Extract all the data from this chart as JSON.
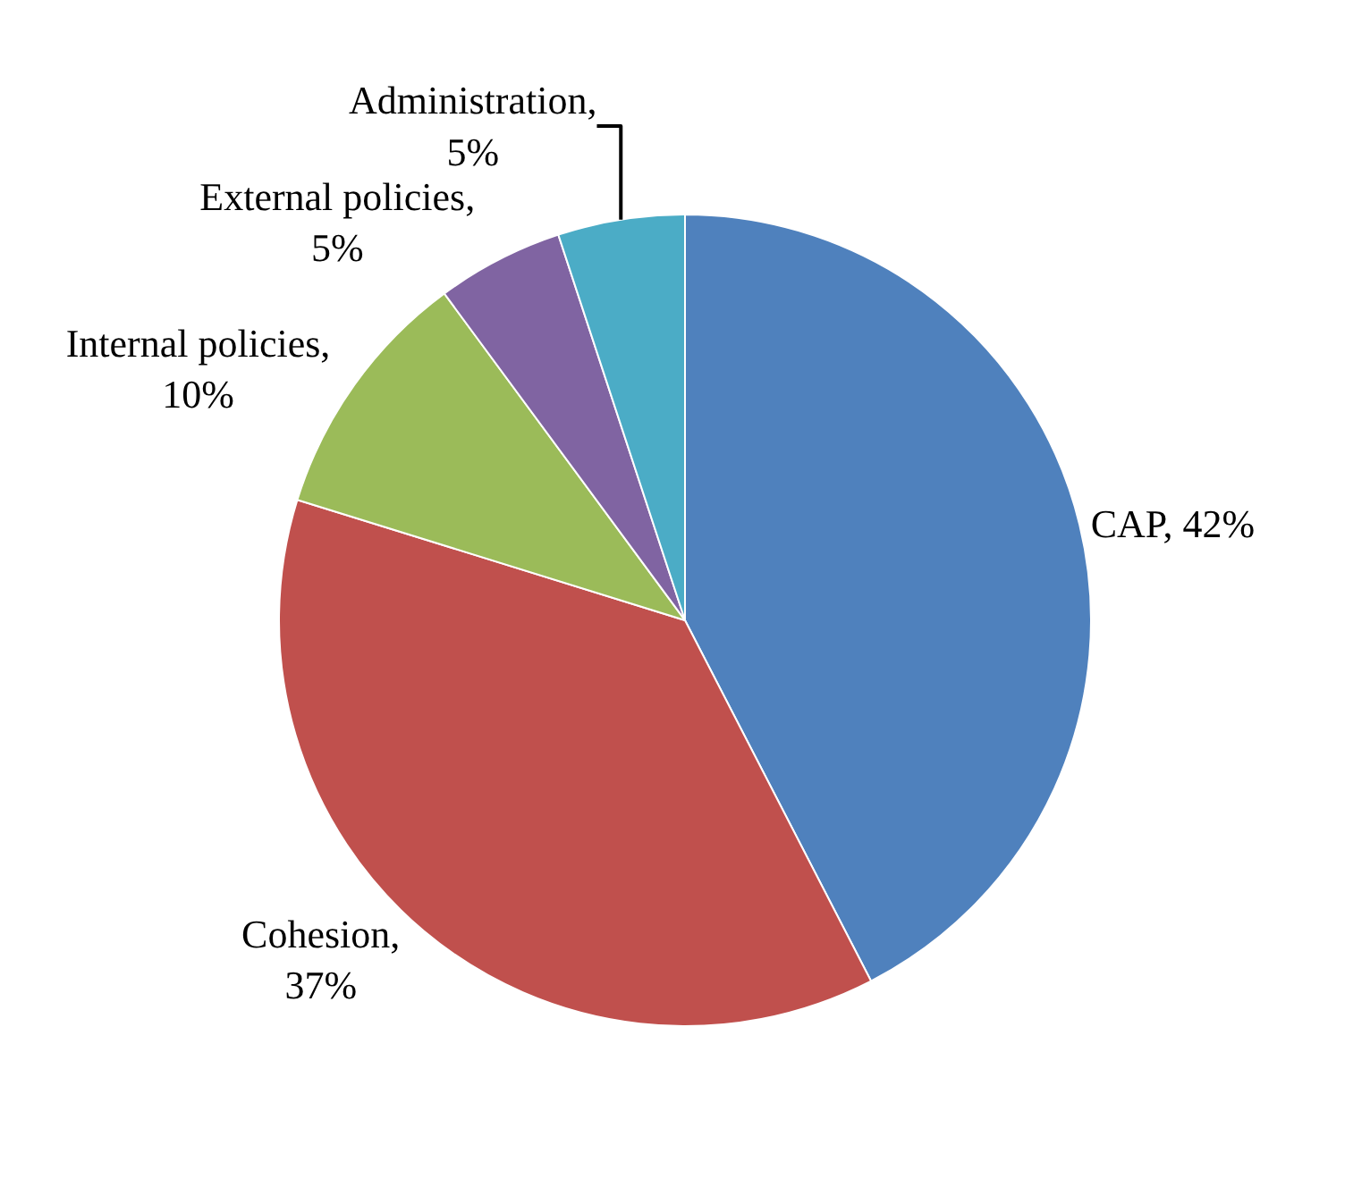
{
  "chart_data": {
    "type": "pie",
    "categories": [
      "CAP",
      "Cohesion",
      "Internal policies",
      "External policies",
      "Administration"
    ],
    "values": [
      42,
      37,
      10,
      5,
      5
    ],
    "colors": [
      "#4f81bd",
      "#c0504d",
      "#9bbb59",
      "#8064a2",
      "#4bacc6"
    ],
    "value_labels": [
      ", 42%",
      ", 37%",
      ", 10%",
      ", 5%",
      ", 5%"
    ],
    "legend": false
  }
}
